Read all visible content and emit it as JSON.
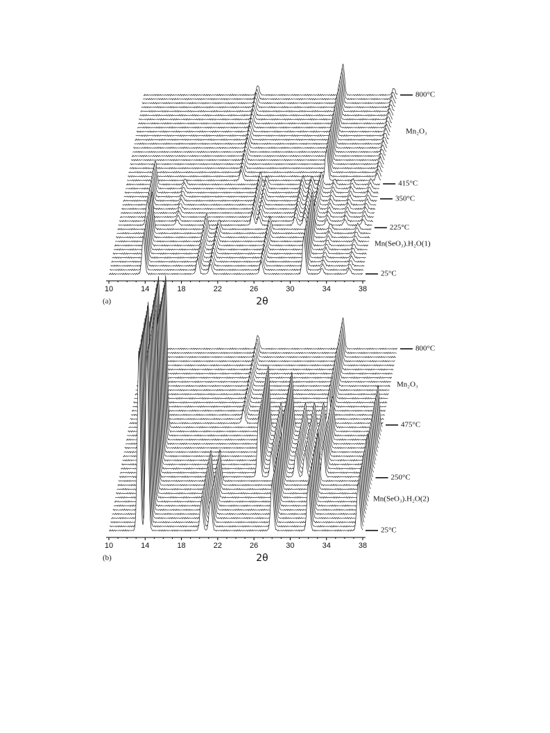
{
  "chart_data": [
    {
      "type": "waterfall",
      "panel_label": "(a)",
      "xlabel": "2θ",
      "xlim": [
        10,
        38
      ],
      "xticks": [
        10,
        14,
        18,
        22,
        26,
        30,
        34,
        38
      ],
      "zlim": [
        25,
        800
      ],
      "zticks": [
        {
          "value": 25,
          "label": "25°C"
        },
        {
          "value": 225,
          "label": "225°C"
        },
        {
          "value": 350,
          "label": "350°C"
        },
        {
          "value": 415,
          "label": "415°C"
        },
        {
          "value": 800,
          "label": "800°C"
        }
      ],
      "series": [
        {
          "name": "Mn(SeO₃).H₂O(1)",
          "zrange": [
            25,
            225
          ],
          "x": [
            13.8,
            19.8,
            21.2,
            26.8,
            31.5,
            33.5,
            36.5
          ],
          "values": [
            55,
            22,
            14,
            18,
            55,
            8,
            8
          ]
        },
        {
          "zrange": [
            225,
            415
          ],
          "x": [
            13.2,
            16.5,
            24.8,
            25.5,
            29.5,
            30.5,
            31.5,
            33,
            35,
            37
          ],
          "values": [
            35,
            8,
            18,
            12,
            12,
            12,
            18,
            8,
            8,
            8
          ]
        },
        {
          "name": "Mn₂O₃",
          "zrange": [
            415,
            800
          ],
          "x": [
            22.6,
            32,
            37.6
          ],
          "values": [
            14,
            45,
            10
          ]
        }
      ]
    },
    {
      "type": "waterfall",
      "panel_label": "(b)",
      "xlabel": "2θ",
      "xlim": [
        10,
        38
      ],
      "xticks": [
        10,
        14,
        18,
        22,
        26,
        30,
        34,
        38
      ],
      "zlim": [
        25,
        800
      ],
      "zticks": [
        {
          "value": 25,
          "label": "25°C"
        },
        {
          "value": 250,
          "label": "250°C"
        },
        {
          "value": 475,
          "label": "475°C"
        },
        {
          "value": 800,
          "label": "800°C"
        }
      ],
      "series": [
        {
          "name": "Mn(SeO₃).H₂O(2)",
          "zrange": [
            25,
            250
          ],
          "x": [
            13.3,
            14.2,
            20.2,
            21.2,
            28,
            32,
            37.5
          ],
          "values": [
            260,
            260,
            45,
            45,
            70,
            70,
            70
          ]
        },
        {
          "zrange": [
            250,
            475
          ],
          "x": [
            13.3,
            14.1,
            25.4,
            26.8,
            28,
            29.5,
            30.5,
            31.5,
            32.5,
            37.5
          ],
          "values": [
            220,
            220,
            90,
            35,
            80,
            35,
            35,
            35,
            45,
            60
          ]
        },
        {
          "name": "Mn₂O₃",
          "zrange": [
            475,
            800
          ],
          "x": [
            22.6,
            32
          ],
          "values": [
            20,
            45
          ]
        }
      ]
    }
  ]
}
